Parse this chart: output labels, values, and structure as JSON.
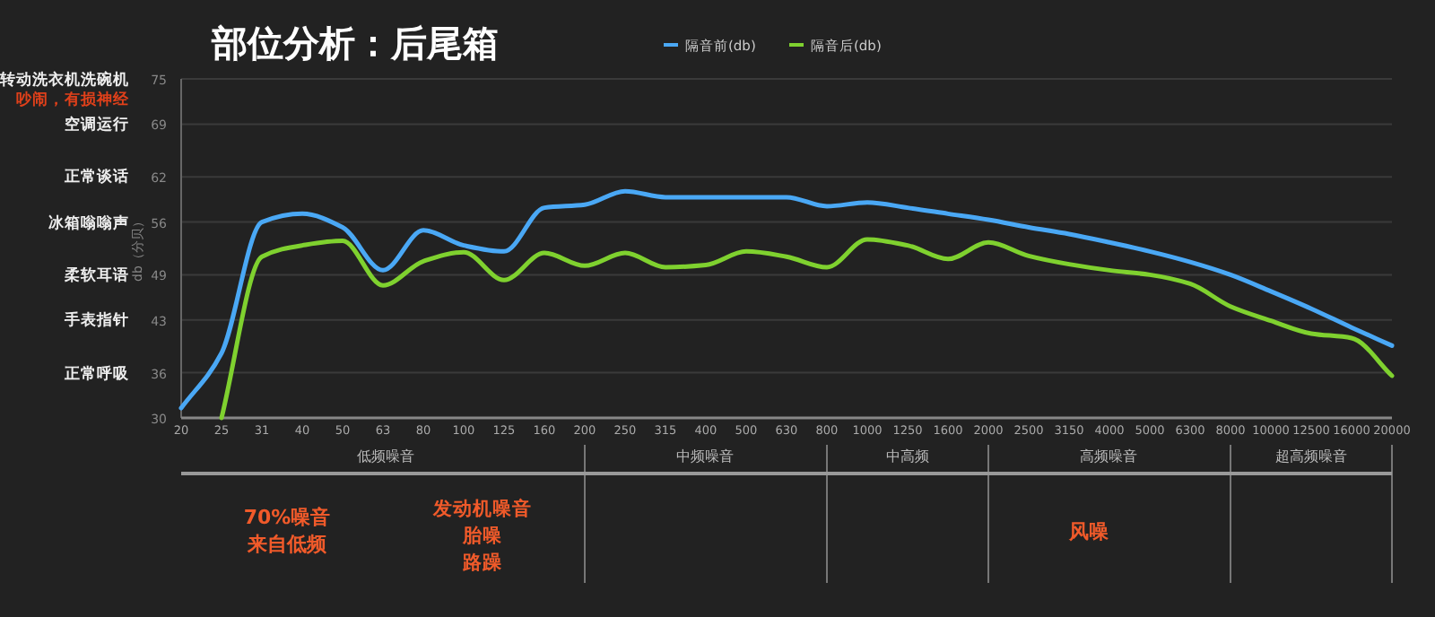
{
  "chart_data": {
    "type": "line",
    "title": "部位分析：后尾箱",
    "ylabel": "db（分贝）",
    "categories": [
      "20",
      "25",
      "31",
      "40",
      "50",
      "63",
      "80",
      "100",
      "125",
      "160",
      "200",
      "250",
      "315",
      "400",
      "500",
      "630",
      "800",
      "1000",
      "1250",
      "1600",
      "2000",
      "2500",
      "3150",
      "4000",
      "5000",
      "6300",
      "8000",
      "10000",
      "12500",
      "16000",
      "20000"
    ],
    "series": [
      {
        "name": "隔音前(db)",
        "color": "#4aa8f5",
        "values": [
          31.3,
          38.6,
          56,
          57.1,
          55.3,
          49.6,
          54.9,
          52.9,
          52.1,
          57.9,
          58.3,
          60.1,
          59.3,
          59.3,
          59.3,
          59.3,
          58.1,
          58.6,
          57.9,
          57.1,
          56.3,
          55.3,
          54.4,
          53.3,
          52.1,
          50.7,
          49,
          46.8,
          44.5,
          42,
          39.6
        ]
      },
      {
        "name": "隔音后(db)",
        "color": "#7fd12f",
        "values": [
          null,
          30,
          51.4,
          52.9,
          53.5,
          47.6,
          50.8,
          52,
          48.3,
          51.9,
          50.2,
          51.9,
          50,
          50.3,
          52.1,
          51.4,
          50,
          53.7,
          52.9,
          51.1,
          53.3,
          51.5,
          50.4,
          49.6,
          49,
          47.8,
          44.8,
          42.9,
          41.2,
          40.6,
          35.6
        ]
      }
    ],
    "ylim": [
      30,
      75
    ],
    "yticks": [
      30,
      36,
      43,
      49,
      56,
      62,
      69,
      75
    ],
    "grid": "y",
    "legend": "top",
    "marker": "none",
    "line_style": "solid",
    "annotations": [
      "转动洗衣机洗碗机",
      "吵闹，有损神经",
      "空调运行",
      "正常谈话",
      "冰箱嗡嗡声",
      "柔软耳语",
      "手表指针",
      "正常呼吸",
      "低频噪音",
      "中频噪音",
      "中高频",
      "高频噪音",
      "超高频噪音",
      "70%噪音",
      "来自低频",
      "发动机噪音",
      "胎噪",
      "路躁",
      "风噪"
    ]
  }
}
